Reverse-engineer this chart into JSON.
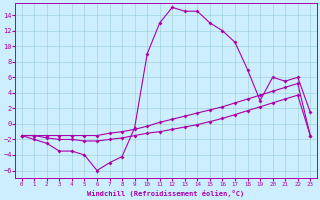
{
  "xlabel": "Windchill (Refroidissement éolien,°C)",
  "xlim": [
    -0.5,
    23.5
  ],
  "ylim": [
    -7,
    15.5
  ],
  "yticks": [
    -6,
    -4,
    -2,
    0,
    2,
    4,
    6,
    8,
    10,
    12,
    14
  ],
  "xticks": [
    0,
    1,
    2,
    3,
    4,
    5,
    6,
    7,
    8,
    9,
    10,
    11,
    12,
    13,
    14,
    15,
    16,
    17,
    18,
    19,
    20,
    21,
    22,
    23
  ],
  "bg_color": "#cceeff",
  "line_color": "#aa00aa",
  "line1_x": [
    0,
    1,
    2,
    3,
    4,
    5,
    6,
    7,
    8,
    9,
    10,
    11,
    12,
    13,
    14,
    15,
    16,
    17,
    18,
    19,
    20,
    21,
    22,
    23
  ],
  "line1_y": [
    -1.5,
    -2.0,
    -2.5,
    -3.5,
    -3.5,
    -4.0,
    -6.0,
    -5.0,
    -4.2,
    -0.5,
    9.0,
    13.0,
    15.0,
    14.5,
    14.5,
    13.0,
    12.0,
    10.5,
    7.0,
    3.0,
    6.0,
    5.5,
    6.0,
    1.5
  ],
  "line2_x": [
    0,
    1,
    2,
    3,
    4,
    5,
    6,
    7,
    8,
    9,
    10,
    11,
    12,
    13,
    14,
    15,
    16,
    17,
    18,
    19,
    20,
    21,
    22,
    23
  ],
  "line2_y": [
    -1.5,
    -1.5,
    -1.8,
    -2.0,
    -2.0,
    -2.2,
    -2.2,
    -2.0,
    -1.8,
    -1.5,
    -1.2,
    -1.0,
    -0.7,
    -0.4,
    -0.1,
    0.3,
    0.7,
    1.2,
    1.7,
    2.2,
    2.7,
    3.2,
    3.7,
    -1.5
  ],
  "line3_x": [
    0,
    1,
    2,
    3,
    4,
    5,
    6,
    7,
    8,
    9,
    10,
    11,
    12,
    13,
    14,
    15,
    16,
    17,
    18,
    19,
    20,
    21,
    22,
    23
  ],
  "line3_y": [
    -1.5,
    -1.5,
    -1.5,
    -1.5,
    -1.5,
    -1.5,
    -1.5,
    -1.2,
    -1.0,
    -0.7,
    -0.3,
    0.2,
    0.6,
    1.0,
    1.4,
    1.8,
    2.2,
    2.7,
    3.2,
    3.7,
    4.2,
    4.7,
    5.2,
    -1.5
  ]
}
